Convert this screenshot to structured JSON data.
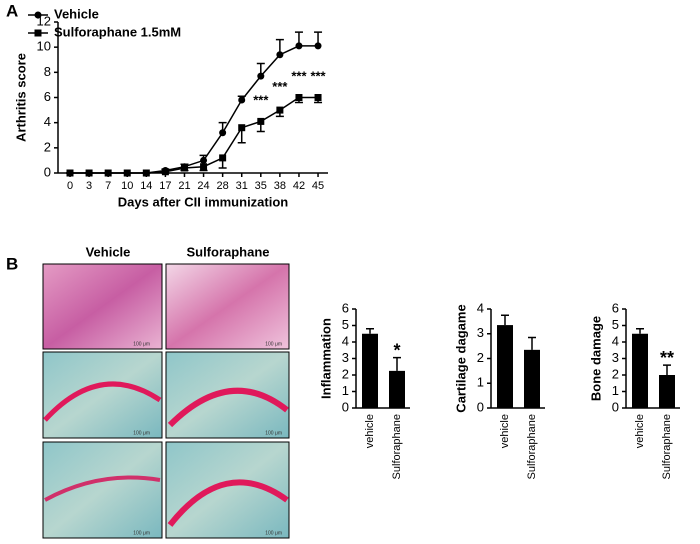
{
  "panels": {
    "a": "A",
    "b": "B"
  },
  "histology": {
    "columns": [
      "Vehicle",
      "Sulforaphane"
    ],
    "scale_label": "100 μm"
  },
  "chart_data": [
    {
      "type": "line",
      "xlabel": "Days after CII immunization",
      "ylabel": "Arthritis score",
      "categories": [
        "0",
        "3",
        "7",
        "10",
        "14",
        "17",
        "21",
        "24",
        "28",
        "31",
        "35",
        "38",
        "42",
        "45"
      ],
      "series": [
        {
          "name": "Vehicle",
          "color": "#000000",
          "marker": "circle",
          "values": [
            0,
            0,
            0,
            0,
            0,
            0.2,
            0.5,
            1.0,
            3.2,
            5.8,
            7.7,
            9.4,
            10.1,
            10.1
          ],
          "errors": [
            0,
            0,
            0,
            0,
            0,
            0.1,
            0.2,
            0.4,
            0.8,
            0.3,
            1.0,
            1.2,
            1.1,
            1.1
          ]
        },
        {
          "name": "Sulforaphane 1.5mM",
          "color": "#000000",
          "marker": "square",
          "values": [
            0,
            0,
            0,
            0,
            0,
            0.1,
            0.4,
            0.5,
            1.2,
            3.6,
            4.1,
            5.0,
            6.0,
            6.0
          ],
          "errors": [
            0,
            0,
            0,
            0,
            0,
            0.1,
            0.2,
            0.3,
            0.8,
            1.2,
            0.8,
            0.5,
            0.4,
            0.4
          ]
        }
      ],
      "annotations": [
        {
          "x": "35",
          "text": "***"
        },
        {
          "x": "38",
          "text": "***"
        },
        {
          "x": "42",
          "text": "***"
        },
        {
          "x": "45",
          "text": "***"
        }
      ],
      "ylim": [
        0,
        12
      ],
      "yticks": [
        0,
        2,
        4,
        6,
        8,
        10,
        12
      ],
      "legend": "upper left"
    },
    {
      "type": "bar",
      "ylabel": "Inflammation",
      "categories": [
        "vehicle",
        "Sulforaphane"
      ],
      "values": [
        4.5,
        2.25
      ],
      "errors": [
        0.3,
        0.8
      ],
      "color": "#000000",
      "annotations": [
        {
          "x": "Sulforaphane",
          "text": "*"
        }
      ],
      "ylim": [
        0,
        6
      ],
      "yticks": [
        0,
        1,
        2,
        3,
        4,
        5,
        6
      ]
    },
    {
      "type": "bar",
      "ylabel": "Cartilage dagame",
      "categories": [
        "vehicle",
        "Sulforaphane"
      ],
      "values": [
        3.35,
        2.35
      ],
      "errors": [
        0.4,
        0.5
      ],
      "color": "#000000",
      "ylim": [
        0,
        4
      ],
      "yticks": [
        0,
        1,
        2,
        3,
        4
      ]
    },
    {
      "type": "bar",
      "ylabel": "Bone damage",
      "categories": [
        "vehicle",
        "Sulforaphane"
      ],
      "values": [
        4.5,
        2.0
      ],
      "errors": [
        0.3,
        0.6
      ],
      "color": "#000000",
      "annotations": [
        {
          "x": "Sulforaphane",
          "text": "**"
        }
      ],
      "ylim": [
        0,
        6
      ],
      "yticks": [
        0,
        1,
        2,
        3,
        4,
        5,
        6
      ]
    }
  ]
}
